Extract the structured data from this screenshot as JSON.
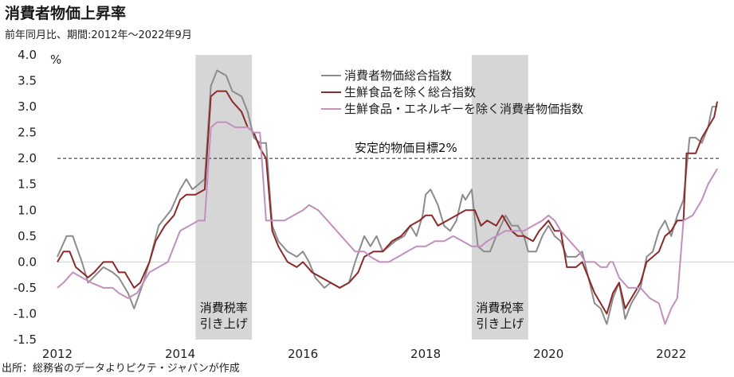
{
  "title": "消費者物価上昇率",
  "subtitle": "前年同月比、期間:2012年〜2022年9月",
  "source": "出所：総務省のデータよりピクテ・ジャパンが作成",
  "chart_data": {
    "type": "line",
    "ylabel": "%",
    "ylim": [
      -1.5,
      4.0
    ],
    "yticks": [
      4.0,
      3.5,
      3.0,
      2.5,
      2.0,
      1.5,
      1.0,
      0.5,
      0.0,
      -0.5,
      -1.0,
      -1.5
    ],
    "yticklabels": [
      "4.0",
      "3.5",
      "3.0",
      "2.5",
      "2.0",
      "1.5",
      "1.0",
      "0.5",
      "0.0",
      "-0.5",
      "-1.0",
      "-1.5"
    ],
    "xlim": [
      2012.0,
      2022.75
    ],
    "xticks": [
      2012,
      2014,
      2016,
      2018,
      2020,
      2022
    ],
    "xticklabels": [
      "2012",
      "2014",
      "2016",
      "2018",
      "2020",
      "2022"
    ],
    "grid": false,
    "legend_position": "top-center",
    "reference_line": {
      "value": 2.0,
      "label": "安定的物価目標2%",
      "style": "dashed"
    },
    "shaded_periods": [
      {
        "start": 2014.25,
        "end": 2015.17,
        "label_line1": "消費税率",
        "label_line2": "引き上げ"
      },
      {
        "start": 2018.75,
        "end": 2019.67,
        "label_line1": "消費税率",
        "label_line2": "引き上げ"
      }
    ],
    "series": [
      {
        "name": "消費者物価総合指数",
        "color": "#8c8c8c",
        "points": [
          [
            2012.0,
            0.1
          ],
          [
            2012.15,
            0.5
          ],
          [
            2012.25,
            0.5
          ],
          [
            2012.4,
            0.0
          ],
          [
            2012.5,
            -0.4
          ],
          [
            2012.75,
            -0.1
          ],
          [
            2012.9,
            -0.2
          ],
          [
            2013.0,
            -0.3
          ],
          [
            2013.15,
            -0.6
          ],
          [
            2013.25,
            -0.9
          ],
          [
            2013.4,
            -0.4
          ],
          [
            2013.5,
            0.0
          ],
          [
            2013.65,
            0.7
          ],
          [
            2013.85,
            1.0
          ],
          [
            2014.0,
            1.4
          ],
          [
            2014.1,
            1.6
          ],
          [
            2014.2,
            1.4
          ],
          [
            2014.3,
            1.5
          ],
          [
            2014.4,
            1.6
          ],
          [
            2014.5,
            3.4
          ],
          [
            2014.6,
            3.7
          ],
          [
            2014.75,
            3.6
          ],
          [
            2014.85,
            3.3
          ],
          [
            2015.0,
            3.2
          ],
          [
            2015.1,
            2.9
          ],
          [
            2015.2,
            2.4
          ],
          [
            2015.3,
            2.3
          ],
          [
            2015.4,
            2.3
          ],
          [
            2015.5,
            0.7
          ],
          [
            2015.6,
            0.4
          ],
          [
            2015.75,
            0.2
          ],
          [
            2015.9,
            0.1
          ],
          [
            2016.0,
            0.2
          ],
          [
            2016.1,
            0.0
          ],
          [
            2016.2,
            -0.3
          ],
          [
            2016.35,
            -0.5
          ],
          [
            2016.45,
            -0.4
          ],
          [
            2016.6,
            -0.5
          ],
          [
            2016.75,
            -0.4
          ],
          [
            2016.85,
            0.0
          ],
          [
            2017.0,
            0.5
          ],
          [
            2017.1,
            0.3
          ],
          [
            2017.2,
            0.5
          ],
          [
            2017.3,
            0.2
          ],
          [
            2017.5,
            0.4
          ],
          [
            2017.65,
            0.5
          ],
          [
            2017.75,
            0.7
          ],
          [
            2017.85,
            0.5
          ],
          [
            2017.95,
            0.9
          ],
          [
            2018.0,
            1.3
          ],
          [
            2018.08,
            1.4
          ],
          [
            2018.2,
            1.1
          ],
          [
            2018.3,
            0.7
          ],
          [
            2018.4,
            0.6
          ],
          [
            2018.5,
            0.8
          ],
          [
            2018.6,
            1.3
          ],
          [
            2018.65,
            1.2
          ],
          [
            2018.75,
            1.4
          ],
          [
            2018.85,
            0.3
          ],
          [
            2018.95,
            0.2
          ],
          [
            2019.05,
            0.2
          ],
          [
            2019.15,
            0.5
          ],
          [
            2019.3,
            0.9
          ],
          [
            2019.4,
            0.7
          ],
          [
            2019.5,
            0.7
          ],
          [
            2019.6,
            0.5
          ],
          [
            2019.67,
            0.2
          ],
          [
            2019.8,
            0.2
          ],
          [
            2019.9,
            0.5
          ],
          [
            2020.0,
            0.7
          ],
          [
            2020.1,
            0.5
          ],
          [
            2020.2,
            0.4
          ],
          [
            2020.3,
            0.1
          ],
          [
            2020.45,
            0.1
          ],
          [
            2020.55,
            0.2
          ],
          [
            2020.65,
            -0.3
          ],
          [
            2020.75,
            -0.8
          ],
          [
            2020.85,
            -0.9
          ],
          [
            2020.95,
            -1.2
          ],
          [
            2021.05,
            -0.7
          ],
          [
            2021.15,
            -0.4
          ],
          [
            2021.25,
            -1.1
          ],
          [
            2021.35,
            -0.8
          ],
          [
            2021.5,
            -0.5
          ],
          [
            2021.6,
            0.1
          ],
          [
            2021.7,
            0.2
          ],
          [
            2021.8,
            0.6
          ],
          [
            2021.9,
            0.8
          ],
          [
            2022.0,
            0.5
          ],
          [
            2022.1,
            0.9
          ],
          [
            2022.2,
            1.2
          ],
          [
            2022.3,
            2.4
          ],
          [
            2022.4,
            2.4
          ],
          [
            2022.5,
            2.3
          ],
          [
            2022.6,
            2.6
          ],
          [
            2022.67,
            3.0
          ],
          [
            2022.75,
            3.0
          ]
        ]
      },
      {
        "name": "生鮮食品を除く総合指数",
        "color": "#8b2a2a",
        "points": [
          [
            2012.0,
            0.0
          ],
          [
            2012.1,
            0.2
          ],
          [
            2012.2,
            0.2
          ],
          [
            2012.3,
            -0.1
          ],
          [
            2012.4,
            -0.2
          ],
          [
            2012.5,
            -0.3
          ],
          [
            2012.6,
            -0.2
          ],
          [
            2012.75,
            0.0
          ],
          [
            2012.9,
            0.0
          ],
          [
            2013.0,
            -0.2
          ],
          [
            2013.1,
            -0.2
          ],
          [
            2013.25,
            -0.5
          ],
          [
            2013.35,
            -0.4
          ],
          [
            2013.5,
            0.0
          ],
          [
            2013.6,
            0.4
          ],
          [
            2013.75,
            0.7
          ],
          [
            2013.9,
            0.9
          ],
          [
            2014.0,
            1.2
          ],
          [
            2014.1,
            1.3
          ],
          [
            2014.25,
            1.3
          ],
          [
            2014.4,
            1.4
          ],
          [
            2014.5,
            3.2
          ],
          [
            2014.6,
            3.3
          ],
          [
            2014.75,
            3.3
          ],
          [
            2014.85,
            3.1
          ],
          [
            2015.0,
            2.9
          ],
          [
            2015.1,
            2.6
          ],
          [
            2015.2,
            2.5
          ],
          [
            2015.3,
            2.2
          ],
          [
            2015.4,
            2.0
          ],
          [
            2015.5,
            0.6
          ],
          [
            2015.6,
            0.3
          ],
          [
            2015.75,
            0.0
          ],
          [
            2015.9,
            -0.1
          ],
          [
            2016.0,
            0.0
          ],
          [
            2016.15,
            -0.2
          ],
          [
            2016.3,
            -0.3
          ],
          [
            2016.45,
            -0.4
          ],
          [
            2016.6,
            -0.5
          ],
          [
            2016.75,
            -0.4
          ],
          [
            2016.9,
            -0.2
          ],
          [
            2017.0,
            0.1
          ],
          [
            2017.15,
            0.2
          ],
          [
            2017.3,
            0.2
          ],
          [
            2017.45,
            0.4
          ],
          [
            2017.6,
            0.5
          ],
          [
            2017.75,
            0.7
          ],
          [
            2017.9,
            0.8
          ],
          [
            2018.0,
            0.9
          ],
          [
            2018.1,
            0.9
          ],
          [
            2018.2,
            0.7
          ],
          [
            2018.35,
            0.8
          ],
          [
            2018.5,
            0.9
          ],
          [
            2018.65,
            1.0
          ],
          [
            2018.8,
            1.0
          ],
          [
            2018.9,
            0.7
          ],
          [
            2019.0,
            0.8
          ],
          [
            2019.15,
            0.7
          ],
          [
            2019.25,
            0.9
          ],
          [
            2019.4,
            0.6
          ],
          [
            2019.5,
            0.5
          ],
          [
            2019.6,
            0.5
          ],
          [
            2019.75,
            0.4
          ],
          [
            2019.85,
            0.6
          ],
          [
            2020.0,
            0.8
          ],
          [
            2020.1,
            0.6
          ],
          [
            2020.2,
            0.6
          ],
          [
            2020.3,
            -0.1
          ],
          [
            2020.45,
            -0.1
          ],
          [
            2020.55,
            0.0
          ],
          [
            2020.65,
            -0.3
          ],
          [
            2020.75,
            -0.6
          ],
          [
            2020.85,
            -0.8
          ],
          [
            2020.95,
            -1.0
          ],
          [
            2021.05,
            -0.6
          ],
          [
            2021.15,
            -0.4
          ],
          [
            2021.25,
            -0.9
          ],
          [
            2021.35,
            -0.7
          ],
          [
            2021.5,
            -0.4
          ],
          [
            2021.6,
            0.0
          ],
          [
            2021.7,
            0.1
          ],
          [
            2021.8,
            0.2
          ],
          [
            2021.9,
            0.5
          ],
          [
            2022.0,
            0.6
          ],
          [
            2022.1,
            0.8
          ],
          [
            2022.2,
            0.8
          ],
          [
            2022.25,
            2.1
          ],
          [
            2022.4,
            2.1
          ],
          [
            2022.5,
            2.4
          ],
          [
            2022.6,
            2.6
          ],
          [
            2022.7,
            2.8
          ],
          [
            2022.75,
            3.1
          ]
        ]
      },
      {
        "name": "生鮮食品・エネルギーを除く消費者物価指数",
        "color": "#c28fbe",
        "points": [
          [
            2012.0,
            -0.5
          ],
          [
            2012.1,
            -0.4
          ],
          [
            2012.25,
            -0.2
          ],
          [
            2012.4,
            -0.3
          ],
          [
            2012.55,
            -0.4
          ],
          [
            2012.75,
            -0.5
          ],
          [
            2012.9,
            -0.5
          ],
          [
            2013.0,
            -0.6
          ],
          [
            2013.15,
            -0.7
          ],
          [
            2013.3,
            -0.6
          ],
          [
            2013.5,
            -0.2
          ],
          [
            2013.65,
            -0.1
          ],
          [
            2013.8,
            0.0
          ],
          [
            2013.9,
            0.3
          ],
          [
            2014.0,
            0.6
          ],
          [
            2014.15,
            0.7
          ],
          [
            2014.3,
            0.8
          ],
          [
            2014.4,
            0.8
          ],
          [
            2014.5,
            2.6
          ],
          [
            2014.6,
            2.7
          ],
          [
            2014.75,
            2.7
          ],
          [
            2014.9,
            2.6
          ],
          [
            2015.0,
            2.6
          ],
          [
            2015.1,
            2.6
          ],
          [
            2015.2,
            2.5
          ],
          [
            2015.3,
            2.5
          ],
          [
            2015.4,
            0.8
          ],
          [
            2015.55,
            0.8
          ],
          [
            2015.7,
            0.8
          ],
          [
            2015.85,
            0.9
          ],
          [
            2016.0,
            1.0
          ],
          [
            2016.1,
            1.1
          ],
          [
            2016.25,
            1.0
          ],
          [
            2016.4,
            0.8
          ],
          [
            2016.55,
            0.6
          ],
          [
            2016.7,
            0.4
          ],
          [
            2016.85,
            0.2
          ],
          [
            2017.0,
            0.2
          ],
          [
            2017.1,
            0.1
          ],
          [
            2017.25,
            0.0
          ],
          [
            2017.4,
            0.0
          ],
          [
            2017.55,
            0.1
          ],
          [
            2017.7,
            0.2
          ],
          [
            2017.85,
            0.3
          ],
          [
            2018.0,
            0.3
          ],
          [
            2018.15,
            0.4
          ],
          [
            2018.3,
            0.4
          ],
          [
            2018.45,
            0.5
          ],
          [
            2018.6,
            0.4
          ],
          [
            2018.75,
            0.3
          ],
          [
            2018.9,
            0.3
          ],
          [
            2019.0,
            0.4
          ],
          [
            2019.15,
            0.5
          ],
          [
            2019.3,
            0.6
          ],
          [
            2019.45,
            0.6
          ],
          [
            2019.6,
            0.6
          ],
          [
            2019.75,
            0.7
          ],
          [
            2019.9,
            0.8
          ],
          [
            2020.0,
            0.9
          ],
          [
            2020.1,
            0.8
          ],
          [
            2020.2,
            0.6
          ],
          [
            2020.35,
            0.4
          ],
          [
            2020.5,
            0.2
          ],
          [
            2020.6,
            0.0
          ],
          [
            2020.75,
            0.0
          ],
          [
            2020.85,
            -0.1
          ],
          [
            2020.95,
            -0.1
          ],
          [
            2021.0,
            0.0
          ],
          [
            2021.05,
            0.0
          ],
          [
            2021.15,
            -0.3
          ],
          [
            2021.3,
            -0.5
          ],
          [
            2021.5,
            -0.5
          ],
          [
            2021.65,
            -0.7
          ],
          [
            2021.8,
            -0.8
          ],
          [
            2021.9,
            -1.2
          ],
          [
            2022.0,
            -0.9
          ],
          [
            2022.1,
            -0.7
          ],
          [
            2022.2,
            0.8
          ],
          [
            2022.35,
            0.9
          ],
          [
            2022.5,
            1.2
          ],
          [
            2022.6,
            1.5
          ],
          [
            2022.75,
            1.8
          ]
        ]
      }
    ]
  }
}
